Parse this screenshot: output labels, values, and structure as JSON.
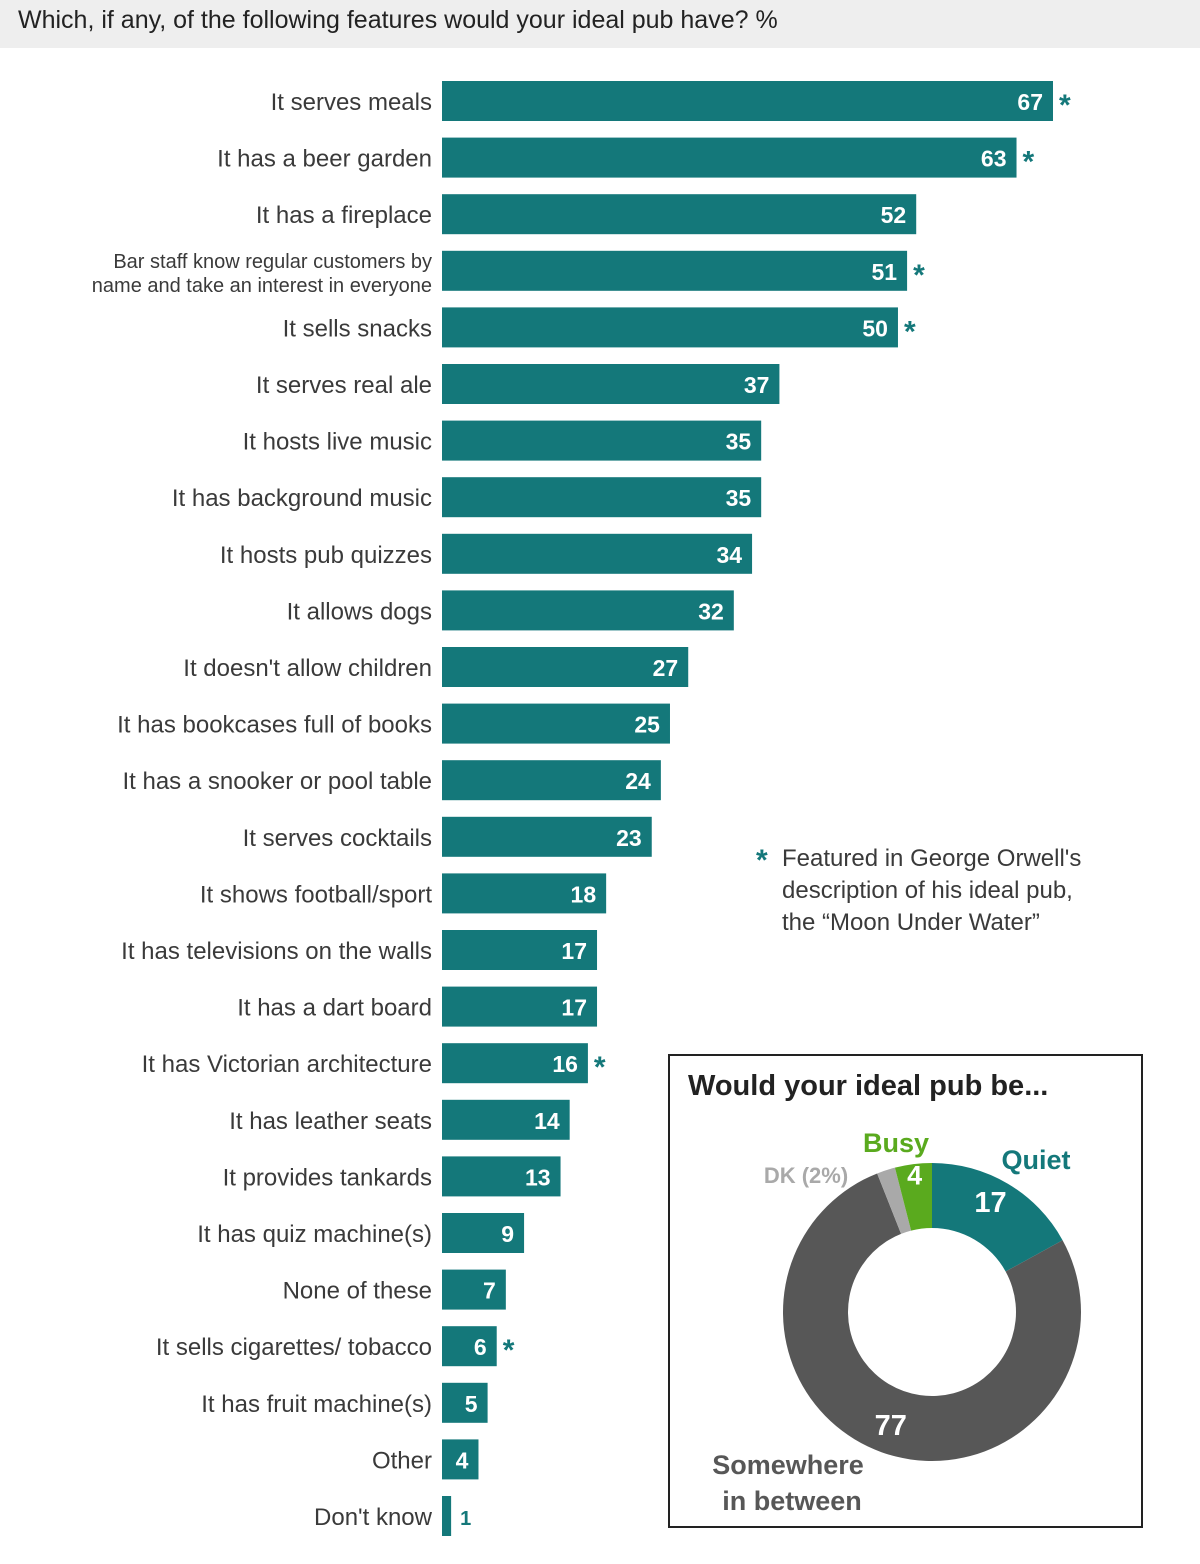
{
  "header": {
    "title": "Which, if any, of the following features would your ideal pub have? %"
  },
  "colors": {
    "bar": "#14787a",
    "accent": "#14787a",
    "busy": "#5aaa1e",
    "between": "#575757",
    "dk": "#a9a9a9",
    "header_bg": "#eeeeee"
  },
  "chart_data": [
    {
      "type": "bar",
      "orientation": "horizontal",
      "title": "Which, if any, of the following features would your ideal pub have? %",
      "xlim": [
        0,
        70
      ],
      "categories": [
        "It serves meals",
        "It has a beer garden",
        "It has a fireplace",
        "Bar staff know regular customers by name and take an interest in everyone",
        "It sells snacks",
        "It serves real ale",
        "It hosts live music",
        "It has background music",
        "It hosts pub quizzes",
        "It allows dogs",
        "It doesn't allow children",
        "It has bookcases full of books",
        "It has a snooker or pool table",
        "It serves cocktails",
        "It shows football/sport",
        "It has televisions on the walls",
        "It has a dart board",
        "It has Victorian architecture",
        "It has leather seats",
        "It provides tankards",
        "It has quiz machine(s)",
        "None of these",
        "It sells cigarettes/ tobacco",
        "It has fruit machine(s)",
        "Other",
        "Don't know"
      ],
      "values": [
        67,
        63,
        52,
        51,
        50,
        37,
        35,
        35,
        34,
        32,
        27,
        25,
        24,
        23,
        18,
        17,
        17,
        16,
        14,
        13,
        9,
        7,
        6,
        5,
        4,
        1
      ],
      "orwell_marked": [
        true,
        true,
        false,
        true,
        true,
        false,
        false,
        false,
        false,
        false,
        false,
        false,
        false,
        false,
        false,
        false,
        false,
        true,
        false,
        false,
        false,
        false,
        true,
        false,
        false,
        false
      ],
      "marker": "*",
      "legend": {
        "marker": "*",
        "lines": [
          "Featured in George Orwell's",
          "description of his ideal pub,",
          "the “Moon Under Water”"
        ]
      }
    },
    {
      "type": "pie",
      "variant": "donut",
      "title": "Would your ideal pub be...",
      "slices": [
        {
          "name": "Quiet",
          "value": 17,
          "label": "17",
          "color": "#14787a"
        },
        {
          "name": "Somewhere in between",
          "value": 77,
          "label": "77",
          "color": "#575757"
        },
        {
          "name": "DK (2%)",
          "value": 2,
          "label": "",
          "color": "#a9a9a9"
        },
        {
          "name": "Busy",
          "value": 4,
          "label": "4",
          "color": "#5aaa1e"
        }
      ],
      "name_lines": {
        "between": [
          "Somewhere",
          "in between"
        ]
      }
    }
  ]
}
